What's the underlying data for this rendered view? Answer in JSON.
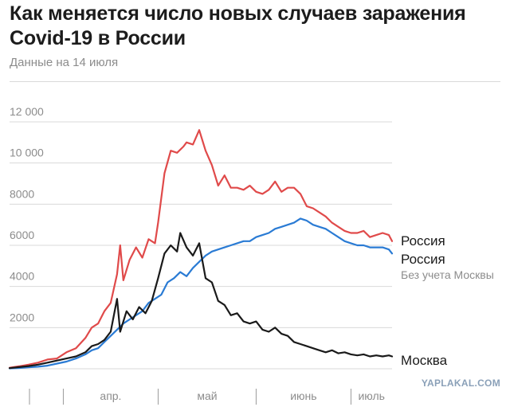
{
  "header": {
    "title": "Как меняется число новых случаев заражения Covid-19 в России",
    "subtitle": "Данные на 14 июля"
  },
  "watermark": "YAPLAKAL.COM",
  "colors": {
    "russia": "#e04a4a",
    "russia_ex_moscow": "#2a7bd4",
    "moscow": "#1a1a1a",
    "grid": "#d9d9d9",
    "tick_text": "#8c8c8c"
  },
  "chart_data": {
    "type": "line",
    "title": "Как меняется число новых случаев заражения Covid-19 в России",
    "subtitle": "Данные на 14 июля",
    "x_start": "2020-03-15",
    "x_end": "2020-07-14",
    "xlim": [
      "2020-03-15",
      "2020-07-14"
    ],
    "ylim": [
      0,
      12000
    ],
    "yticks": [
      {
        "value": 2000,
        "label": "2000"
      },
      {
        "value": 4000,
        "label": "4000"
      },
      {
        "value": 6000,
        "label": "6000"
      },
      {
        "value": 8000,
        "label": "8000"
      },
      {
        "value": 10000,
        "label": "10 000"
      },
      {
        "value": 12000,
        "label": "12 000"
      }
    ],
    "month_labels": [
      {
        "label": "апр.",
        "from": "2020-04-01",
        "to": "2020-05-01"
      },
      {
        "label": "май",
        "from": "2020-05-01",
        "to": "2020-06-01"
      },
      {
        "label": "июнь",
        "from": "2020-06-01",
        "to": "2020-07-01"
      },
      {
        "label": "июль",
        "from": "2020-07-01",
        "to": "2020-07-14"
      }
    ],
    "month_ticks": [
      "2020-04-01",
      "2020-05-01",
      "2020-06-01",
      "2020-07-01"
    ],
    "grid": true,
    "legend_placement": "right-end-labels",
    "series": [
      {
        "name": "Россия",
        "color": "#e04a4a",
        "points": [
          [
            "2020-03-15",
            50
          ],
          [
            "2020-03-18",
            120
          ],
          [
            "2020-03-21",
            200
          ],
          [
            "2020-03-24",
            300
          ],
          [
            "2020-03-27",
            450
          ],
          [
            "2020-03-30",
            500
          ],
          [
            "2020-04-02",
            800
          ],
          [
            "2020-04-05",
            1000
          ],
          [
            "2020-04-08",
            1500
          ],
          [
            "2020-04-10",
            2000
          ],
          [
            "2020-04-12",
            2200
          ],
          [
            "2020-04-14",
            2800
          ],
          [
            "2020-04-16",
            3200
          ],
          [
            "2020-04-18",
            4600
          ],
          [
            "2020-04-19",
            6000
          ],
          [
            "2020-04-20",
            4300
          ],
          [
            "2020-04-22",
            5300
          ],
          [
            "2020-04-24",
            5900
          ],
          [
            "2020-04-26",
            5400
          ],
          [
            "2020-04-28",
            6300
          ],
          [
            "2020-04-30",
            6100
          ],
          [
            "2020-05-01",
            7100
          ],
          [
            "2020-05-03",
            9500
          ],
          [
            "2020-05-05",
            10600
          ],
          [
            "2020-05-07",
            10500
          ],
          [
            "2020-05-09",
            10800
          ],
          [
            "2020-05-10",
            11000
          ],
          [
            "2020-05-12",
            10900
          ],
          [
            "2020-05-14",
            11600
          ],
          [
            "2020-05-16",
            10600
          ],
          [
            "2020-05-18",
            9900
          ],
          [
            "2020-05-20",
            8900
          ],
          [
            "2020-05-22",
            9400
          ],
          [
            "2020-05-24",
            8800
          ],
          [
            "2020-05-26",
            8800
          ],
          [
            "2020-05-28",
            8700
          ],
          [
            "2020-05-30",
            8900
          ],
          [
            "2020-06-01",
            8600
          ],
          [
            "2020-06-03",
            8500
          ],
          [
            "2020-06-05",
            8700
          ],
          [
            "2020-06-07",
            9100
          ],
          [
            "2020-06-09",
            8600
          ],
          [
            "2020-06-11",
            8800
          ],
          [
            "2020-06-13",
            8800
          ],
          [
            "2020-06-15",
            8500
          ],
          [
            "2020-06-17",
            7900
          ],
          [
            "2020-06-19",
            7800
          ],
          [
            "2020-06-21",
            7600
          ],
          [
            "2020-06-23",
            7400
          ],
          [
            "2020-06-25",
            7100
          ],
          [
            "2020-06-27",
            6900
          ],
          [
            "2020-06-29",
            6700
          ],
          [
            "2020-07-01",
            6600
          ],
          [
            "2020-07-03",
            6600
          ],
          [
            "2020-07-05",
            6700
          ],
          [
            "2020-07-07",
            6400
          ],
          [
            "2020-07-09",
            6500
          ],
          [
            "2020-07-11",
            6600
          ],
          [
            "2020-07-13",
            6500
          ],
          [
            "2020-07-14",
            6200
          ]
        ]
      },
      {
        "name": "Россия",
        "note": "Без учета Москвы",
        "color": "#2a7bd4",
        "points": [
          [
            "2020-03-15",
            20
          ],
          [
            "2020-03-18",
            40
          ],
          [
            "2020-03-21",
            70
          ],
          [
            "2020-03-24",
            100
          ],
          [
            "2020-03-27",
            150
          ],
          [
            "2020-03-30",
            250
          ],
          [
            "2020-04-02",
            350
          ],
          [
            "2020-04-05",
            500
          ],
          [
            "2020-04-08",
            700
          ],
          [
            "2020-04-10",
            900
          ],
          [
            "2020-04-12",
            1000
          ],
          [
            "2020-04-14",
            1300
          ],
          [
            "2020-04-16",
            1600
          ],
          [
            "2020-04-18",
            1900
          ],
          [
            "2020-04-20",
            2200
          ],
          [
            "2020-04-22",
            2400
          ],
          [
            "2020-04-24",
            2600
          ],
          [
            "2020-04-26",
            2800
          ],
          [
            "2020-04-28",
            3200
          ],
          [
            "2020-04-30",
            3400
          ],
          [
            "2020-05-02",
            3600
          ],
          [
            "2020-05-04",
            4200
          ],
          [
            "2020-05-06",
            4400
          ],
          [
            "2020-05-08",
            4700
          ],
          [
            "2020-05-10",
            4500
          ],
          [
            "2020-05-12",
            4900
          ],
          [
            "2020-05-14",
            5200
          ],
          [
            "2020-05-16",
            5500
          ],
          [
            "2020-05-18",
            5700
          ],
          [
            "2020-05-20",
            5800
          ],
          [
            "2020-05-22",
            5900
          ],
          [
            "2020-05-24",
            6000
          ],
          [
            "2020-05-26",
            6100
          ],
          [
            "2020-05-28",
            6200
          ],
          [
            "2020-05-30",
            6200
          ],
          [
            "2020-06-01",
            6400
          ],
          [
            "2020-06-03",
            6500
          ],
          [
            "2020-06-05",
            6600
          ],
          [
            "2020-06-07",
            6800
          ],
          [
            "2020-06-09",
            6900
          ],
          [
            "2020-06-11",
            7000
          ],
          [
            "2020-06-13",
            7100
          ],
          [
            "2020-06-15",
            7300
          ],
          [
            "2020-06-17",
            7200
          ],
          [
            "2020-06-19",
            7000
          ],
          [
            "2020-06-21",
            6900
          ],
          [
            "2020-06-23",
            6800
          ],
          [
            "2020-06-25",
            6600
          ],
          [
            "2020-06-27",
            6400
          ],
          [
            "2020-06-29",
            6200
          ],
          [
            "2020-07-01",
            6100
          ],
          [
            "2020-07-03",
            6000
          ],
          [
            "2020-07-05",
            6000
          ],
          [
            "2020-07-07",
            5900
          ],
          [
            "2020-07-09",
            5900
          ],
          [
            "2020-07-11",
            5900
          ],
          [
            "2020-07-13",
            5800
          ],
          [
            "2020-07-14",
            5600
          ]
        ]
      },
      {
        "name": "Москва",
        "color": "#1a1a1a",
        "points": [
          [
            "2020-03-15",
            30
          ],
          [
            "2020-03-18",
            80
          ],
          [
            "2020-03-21",
            130
          ],
          [
            "2020-03-24",
            200
          ],
          [
            "2020-03-27",
            300
          ],
          [
            "2020-03-30",
            400
          ],
          [
            "2020-04-02",
            500
          ],
          [
            "2020-04-05",
            600
          ],
          [
            "2020-04-08",
            800
          ],
          [
            "2020-04-10",
            1100
          ],
          [
            "2020-04-12",
            1200
          ],
          [
            "2020-04-14",
            1400
          ],
          [
            "2020-04-16",
            1800
          ],
          [
            "2020-04-18",
            3400
          ],
          [
            "2020-04-19",
            1800
          ],
          [
            "2020-04-21",
            2800
          ],
          [
            "2020-04-23",
            2400
          ],
          [
            "2020-04-25",
            3000
          ],
          [
            "2020-04-27",
            2700
          ],
          [
            "2020-04-29",
            3300
          ],
          [
            "2020-05-01",
            4400
          ],
          [
            "2020-05-03",
            5600
          ],
          [
            "2020-05-05",
            6000
          ],
          [
            "2020-05-07",
            5700
          ],
          [
            "2020-05-08",
            6600
          ],
          [
            "2020-05-10",
            5900
          ],
          [
            "2020-05-12",
            5500
          ],
          [
            "2020-05-14",
            6100
          ],
          [
            "2020-05-16",
            4400
          ],
          [
            "2020-05-18",
            4200
          ],
          [
            "2020-05-20",
            3300
          ],
          [
            "2020-05-22",
            3100
          ],
          [
            "2020-05-24",
            2600
          ],
          [
            "2020-05-26",
            2700
          ],
          [
            "2020-05-28",
            2300
          ],
          [
            "2020-05-30",
            2200
          ],
          [
            "2020-06-01",
            2300
          ],
          [
            "2020-06-03",
            1900
          ],
          [
            "2020-06-05",
            1800
          ],
          [
            "2020-06-07",
            2000
          ],
          [
            "2020-06-09",
            1700
          ],
          [
            "2020-06-11",
            1600
          ],
          [
            "2020-06-13",
            1300
          ],
          [
            "2020-06-15",
            1200
          ],
          [
            "2020-06-17",
            1100
          ],
          [
            "2020-06-19",
            1000
          ],
          [
            "2020-06-21",
            900
          ],
          [
            "2020-06-23",
            800
          ],
          [
            "2020-06-25",
            900
          ],
          [
            "2020-06-27",
            750
          ],
          [
            "2020-06-29",
            800
          ],
          [
            "2020-07-01",
            700
          ],
          [
            "2020-07-03",
            650
          ],
          [
            "2020-07-05",
            700
          ],
          [
            "2020-07-07",
            600
          ],
          [
            "2020-07-09",
            650
          ],
          [
            "2020-07-11",
            600
          ],
          [
            "2020-07-13",
            650
          ],
          [
            "2020-07-14",
            600
          ]
        ]
      }
    ]
  }
}
